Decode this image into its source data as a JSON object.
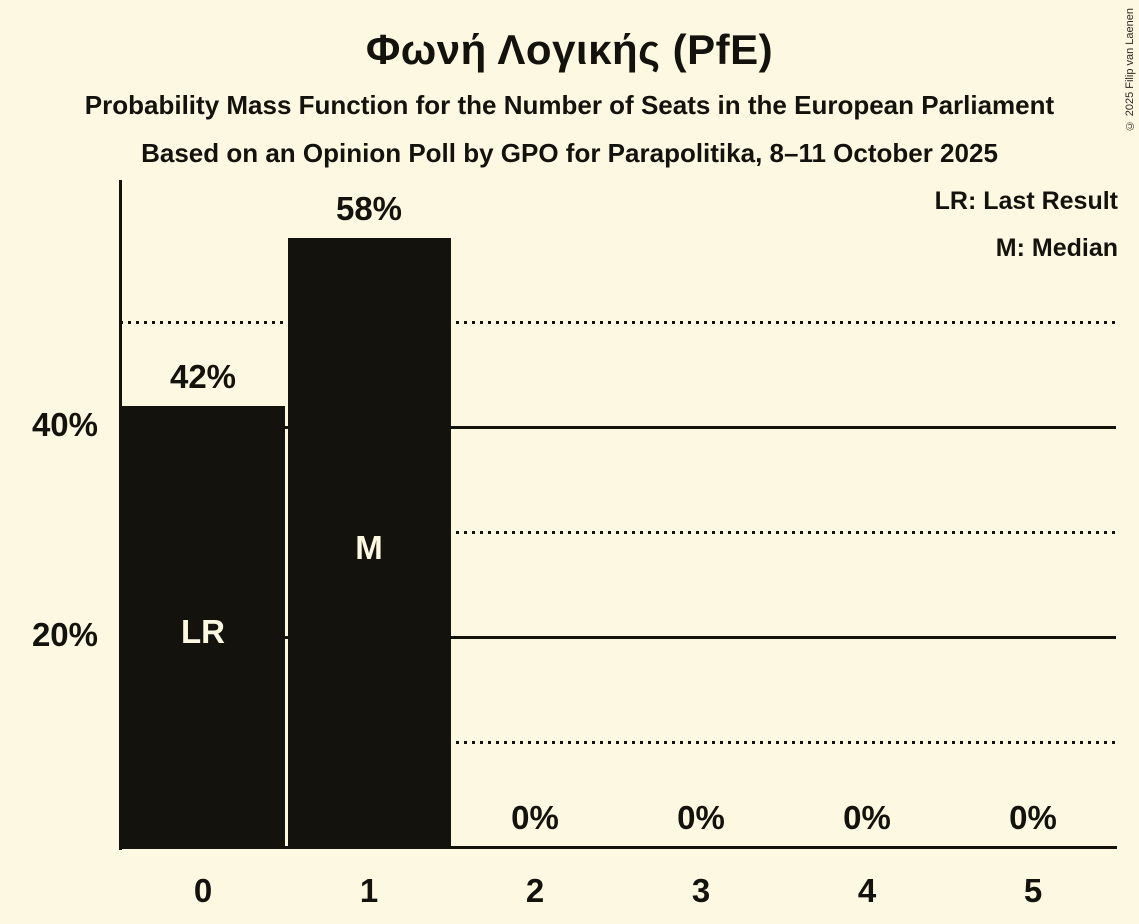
{
  "header": {
    "title": "Φωνή Λογικής (PfE)",
    "subtitle": "Probability Mass Function for the Number of Seats in the European Parliament",
    "source_line": "Based on an Opinion Poll by GPO for Parapolitika, 8–11 October 2025",
    "copyright": "© 2025 Filip van Laenen"
  },
  "colors": {
    "background": "#FDF8E1",
    "bar": "#14120C",
    "text": "#14120C",
    "bar_label": "#FDF8E1"
  },
  "chart_data": {
    "type": "bar",
    "title": "Φωνή Λογικής (PfE)",
    "categories": [
      "0",
      "1",
      "2",
      "3",
      "4",
      "5"
    ],
    "values": [
      42,
      58,
      0,
      0,
      0,
      0
    ],
    "value_labels": [
      "42%",
      "58%",
      "0%",
      "0%",
      "0%",
      "0%"
    ],
    "bar_markers": [
      {
        "index": 0,
        "label": "LR",
        "at_pct": 20.5
      },
      {
        "index": 1,
        "label": "M",
        "at_pct": 28.5
      }
    ],
    "legend": [
      "LR: Last Result",
      "M: Median"
    ],
    "xlabel": "",
    "ylabel": "",
    "ylim": [
      0,
      63.5
    ],
    "y_ticks": [
      {
        "pct": 20,
        "label": "20%"
      },
      {
        "pct": 40,
        "label": "40%"
      }
    ],
    "gridlines": {
      "solid_pcts": [
        20,
        40
      ],
      "dotted_pcts": [
        10,
        30,
        50
      ]
    },
    "grid": true,
    "legend_position": "top-right"
  }
}
